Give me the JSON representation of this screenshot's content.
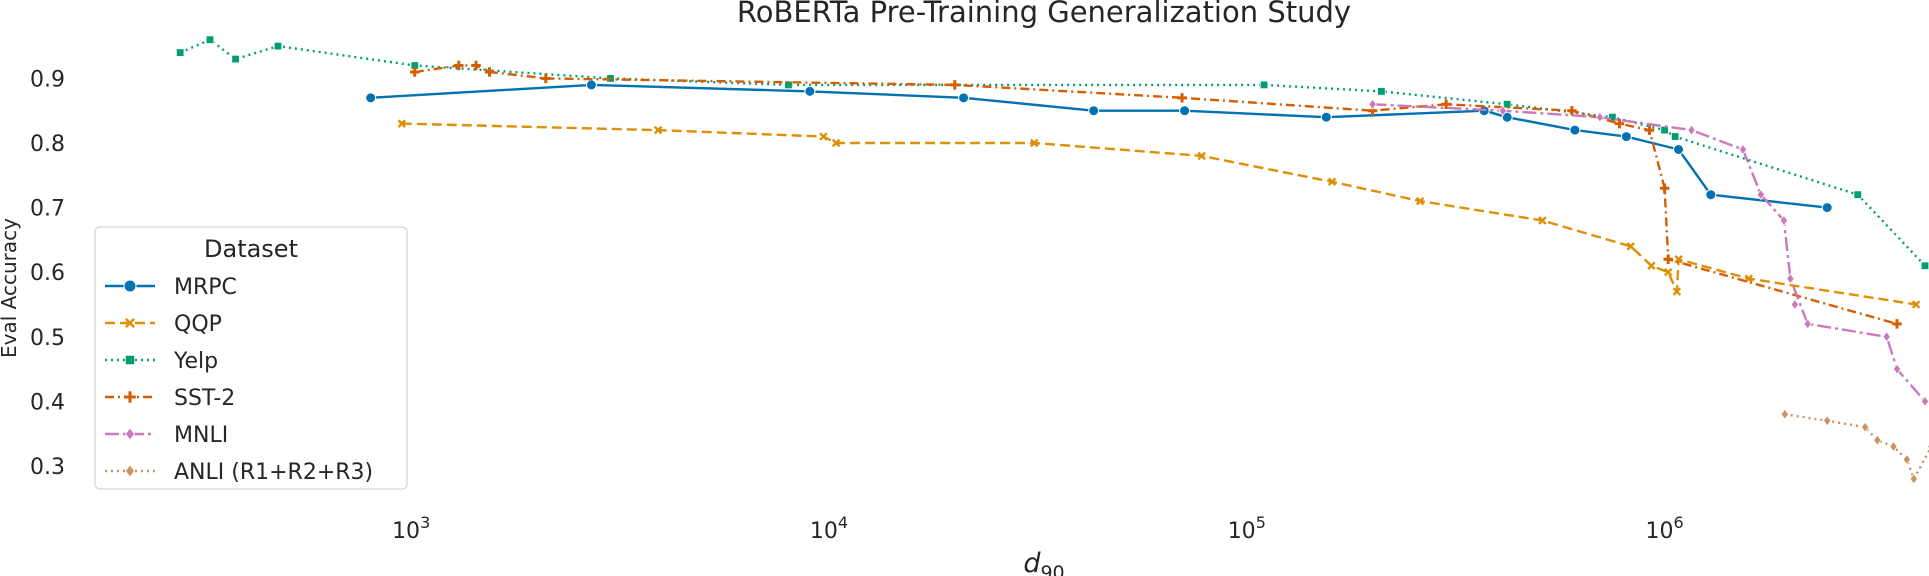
{
  "chart_data": {
    "type": "line",
    "title": "RoBERTa Pre-Training Generalization Study",
    "xlabel_main": "d",
    "xlabel_sub": "90",
    "ylabel": "Eval Accuracy",
    "xscale": "log",
    "xlim": [
      180,
      4200000
    ],
    "ylim": [
      0.255,
      0.975
    ],
    "grid": false,
    "legend_title": "Dataset",
    "legend_position": "lower left",
    "xticks": [
      {
        "value": 1000,
        "base": "10",
        "exp": "3"
      },
      {
        "value": 10000,
        "base": "10",
        "exp": "4"
      },
      {
        "value": 100000,
        "base": "10",
        "exp": "5"
      },
      {
        "value": 1000000,
        "base": "10",
        "exp": "6"
      }
    ],
    "yticks": [
      {
        "value": 0.3,
        "label": "0.3"
      },
      {
        "value": 0.4,
        "label": "0.4"
      },
      {
        "value": 0.5,
        "label": "0.5"
      },
      {
        "value": 0.6,
        "label": "0.6"
      },
      {
        "value": 0.7,
        "label": "0.7"
      },
      {
        "value": 0.8,
        "label": "0.8"
      },
      {
        "value": 0.9,
        "label": "0.9"
      }
    ],
    "series": [
      {
        "name": "MRPC",
        "color": "#0173b2",
        "dash": "solid",
        "marker": "circle",
        "x": [
          800,
          2700,
          9000,
          21000,
          43000,
          71000,
          155000,
          370000,
          420000,
          610000,
          810000,
          1080000,
          1290000,
          2450000
        ],
        "y": [
          0.87,
          0.89,
          0.88,
          0.87,
          0.85,
          0.85,
          0.84,
          0.85,
          0.84,
          0.82,
          0.81,
          0.79,
          0.72,
          0.7
        ]
      },
      {
        "name": "QQP",
        "color": "#de8f05",
        "dash": "dashed",
        "marker": "x",
        "x": [
          950,
          3900,
          9700,
          10400,
          31000,
          78000,
          160000,
          260000,
          510000,
          830000,
          930000,
          1020000,
          1070000,
          1080000,
          1590000,
          4000000
        ],
        "y": [
          0.83,
          0.82,
          0.81,
          0.8,
          0.8,
          0.78,
          0.74,
          0.71,
          0.68,
          0.64,
          0.61,
          0.6,
          0.57,
          0.62,
          0.59,
          0.55
        ]
      },
      {
        "name": "Yelp",
        "color": "#029e73",
        "dash": "dotted",
        "marker": "square",
        "x": [
          280,
          330,
          380,
          480,
          1020,
          3000,
          8000,
          110000,
          210000,
          420000,
          750000,
          1000000,
          1060000,
          2900000,
          4200000
        ],
        "y": [
          0.94,
          0.96,
          0.93,
          0.95,
          0.92,
          0.9,
          0.89,
          0.89,
          0.88,
          0.86,
          0.84,
          0.82,
          0.81,
          0.72,
          0.61
        ]
      },
      {
        "name": "SST-2",
        "color": "#d55e00",
        "dash": "dashdot",
        "marker": "plus",
        "x": [
          1020,
          1300,
          1430,
          1540,
          2100,
          20000,
          70000,
          200000,
          300000,
          600000,
          780000,
          920000,
          1000000,
          1020000,
          3600000
        ],
        "y": [
          0.91,
          0.92,
          0.92,
          0.91,
          0.9,
          0.89,
          0.87,
          0.85,
          0.86,
          0.85,
          0.83,
          0.82,
          0.73,
          0.62,
          0.52
        ]
      },
      {
        "name": "MNLI",
        "color": "#cc78bc",
        "dash": "dashdotlong",
        "marker": "diamond",
        "x": [
          200000,
          410000,
          700000,
          1160000,
          1540000,
          1700000,
          1930000,
          2000000,
          2200000,
          3400000,
          3600000,
          4200000
        ],
        "y": [
          0.86,
          0.85,
          0.84,
          0.82,
          0.79,
          0.72,
          0.68,
          0.59,
          0.52,
          0.5,
          0.45,
          0.4
        ],
        "extra_x": [
          2050000
        ],
        "extra_y": [
          0.55
        ]
      },
      {
        "name": "ANLI (R1+R2+R3)",
        "color": "#ca9161",
        "dash": "dotted",
        "marker": "diamond",
        "x": [
          1940000,
          2450000,
          3020000,
          3230000,
          3530000,
          3800000,
          3950000,
          4350000
        ],
        "y": [
          0.38,
          0.37,
          0.36,
          0.34,
          0.33,
          0.31,
          0.28,
          0.33
        ]
      }
    ]
  }
}
